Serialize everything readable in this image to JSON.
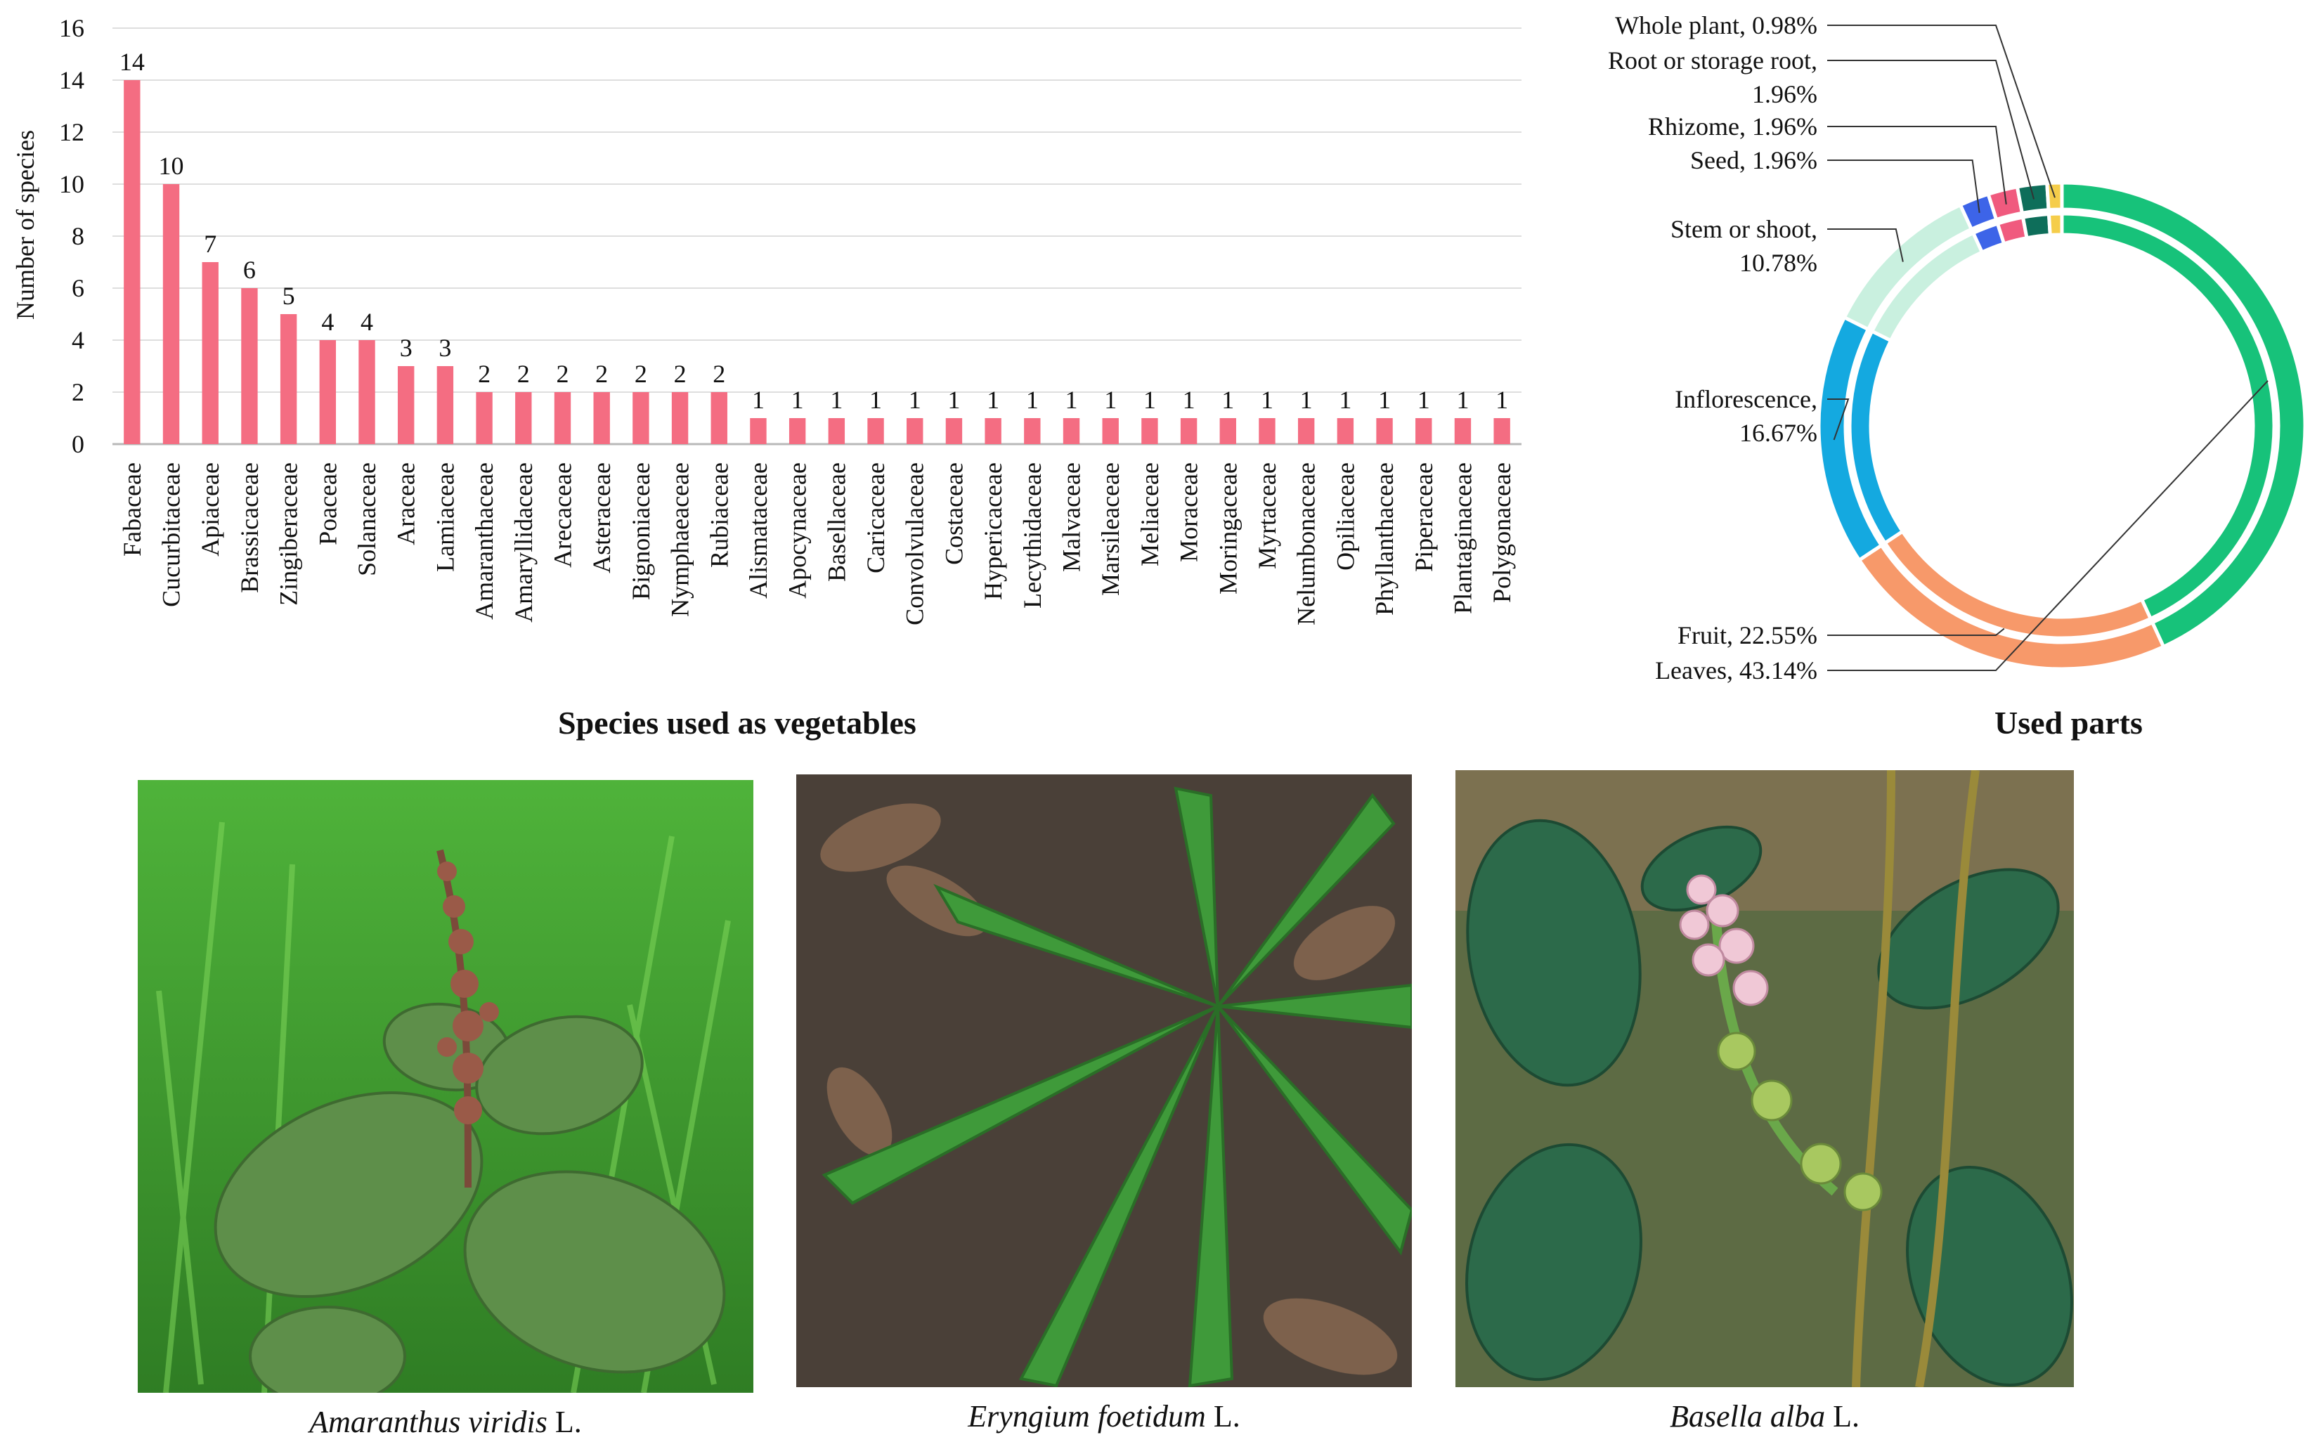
{
  "chart_data": [
    {
      "type": "bar",
      "title": "Species used as vegetables",
      "ylabel": "Number of species",
      "xlabel": "",
      "ylim": [
        0,
        16
      ],
      "yticks": [
        0,
        2,
        4,
        6,
        8,
        10,
        12,
        14,
        16
      ],
      "grid": true,
      "bar_color": "#f46d82",
      "categories": [
        "Fabaceae",
        "Cucurbitaceae",
        "Apiaceae",
        "Brassicaceae",
        "Zingiberaceae",
        "Poaceae",
        "Solanaceae",
        "Araceae",
        "Lamiaceae",
        "Amaranthaceae",
        "Amaryllidaceae",
        "Arecaceae",
        "Asteraceae",
        "Bignoniaceae",
        "Nymphaeaceae",
        "Rubiaceae",
        "Alismataceae",
        "Apocynaceae",
        "Basellaceae",
        "Caricaceae",
        "Convolvulaceae",
        "Costaceae",
        "Hypericaceae",
        "Lecythidaceae",
        "Malvaceae",
        "Marsileaceae",
        "Meliaceae",
        "Moraceae",
        "Moringaceae",
        "Myrtaceae",
        "Nelumbonaceae",
        "Opiliaceae",
        "Phyllanthaceae",
        "Piperaceae",
        "Plantaginaceae",
        "Polygonaceae"
      ],
      "values": [
        14,
        10,
        7,
        6,
        5,
        4,
        4,
        3,
        3,
        2,
        2,
        2,
        2,
        2,
        2,
        2,
        1,
        1,
        1,
        1,
        1,
        1,
        1,
        1,
        1,
        1,
        1,
        1,
        1,
        1,
        1,
        1,
        1,
        1,
        1,
        1
      ]
    },
    {
      "type": "pie",
      "title": "Used parts",
      "donut": true,
      "slices": [
        {
          "label": "Leaves, 43.14%",
          "value": 43.14,
          "color": "#17c27a"
        },
        {
          "label": "Fruit, 22.55%",
          "value": 22.55,
          "color": "#f7996a"
        },
        {
          "label": "Inflorescence, 16.67%",
          "value": 16.67,
          "color": "#14a9e0"
        },
        {
          "label": "Stem or shoot, 10.78%",
          "value": 10.78,
          "color": "#c9f0df"
        },
        {
          "label": "Seed, 1.96%",
          "value": 1.96,
          "color": "#3d64e8"
        },
        {
          "label": "Rhizome, 1.96%",
          "value": 1.96,
          "color": "#f05a7e"
        },
        {
          "label": "Root or storage root, 1.96%",
          "value": 1.96,
          "color": "#0e6e5a"
        },
        {
          "label": "Whole plant, 0.98%",
          "value": 0.98,
          "color": "#f5cd4a"
        }
      ],
      "legend": "callout labels on the left"
    }
  ],
  "photos": [
    {
      "genus_species": "Amaranthus viridis",
      "author": " L."
    },
    {
      "genus_species": "Eryngium foetidum",
      "author": " L."
    },
    {
      "genus_species": "Basella alba",
      "author": " L."
    }
  ]
}
